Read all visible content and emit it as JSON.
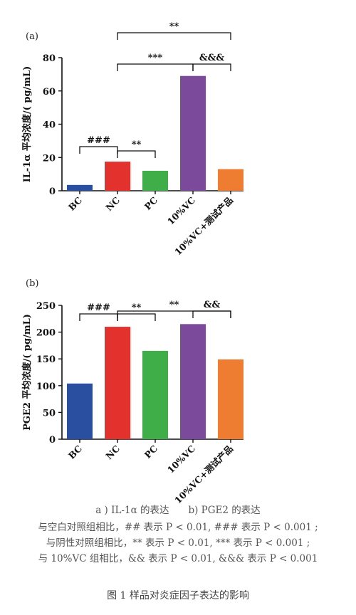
{
  "chart_data": [
    {
      "type": "bar",
      "panel_label": "(a)",
      "ylabel": "IL-1α 平均浓度/( pg/mL)",
      "categories": [
        "BC",
        "NC",
        "PC",
        "10%VC",
        "10%VC+测试产品"
      ],
      "values": [
        3.5,
        17.5,
        12,
        69,
        13
      ],
      "colors": [
        "#2b4fa0",
        "#e3312d",
        "#3fae49",
        "#7b4a9b",
        "#ee7d32"
      ],
      "ylim": [
        0,
        80
      ],
      "yticks": [
        0,
        20,
        40,
        60,
        80
      ],
      "significance": [
        {
          "from": 0,
          "to": 1,
          "label": "###"
        },
        {
          "from": 1,
          "to": 2,
          "label": "**"
        },
        {
          "from": 1,
          "to": 3,
          "label": "***"
        },
        {
          "from": 3,
          "to": 4,
          "label": "&&&"
        },
        {
          "from": 1,
          "to": 4,
          "label": "**"
        }
      ]
    },
    {
      "type": "bar",
      "panel_label": "(b)",
      "ylabel": "PGE2 平均浓度/( pg/mL)",
      "categories": [
        "BC",
        "NC",
        "PC",
        "10%VC",
        "10%VC+测试产品"
      ],
      "values": [
        104,
        210,
        165,
        215,
        149
      ],
      "colors": [
        "#2b4fa0",
        "#e3312d",
        "#3fae49",
        "#7b4a9b",
        "#ee7d32"
      ],
      "ylim": [
        0,
        250
      ],
      "yticks": [
        0,
        50,
        100,
        150,
        200,
        250
      ],
      "significance": [
        {
          "from": 0,
          "to": 1,
          "label": "###"
        },
        {
          "from": 1,
          "to": 2,
          "label": "**"
        },
        {
          "from": 3,
          "to": 4,
          "label": "&&"
        },
        {
          "from": 1,
          "to": 4,
          "label": "**"
        }
      ]
    }
  ],
  "captions": {
    "sub": "a ) IL-1α 的表达　　b) PGE2 的表达",
    "notes": [
      "与空白对照组相比，## 表示 P < 0.01, ### 表示 P < 0.001 ;",
      "与阴性对照组相比，** 表示 P < 0.01,  *** 表示 P < 0.001 ;",
      "与 10%VC 组相比，&& 表示 P < 0.01,  &&& 表示 P < 0.001"
    ],
    "figure_title": "图 1  样品对炎症因子表达的影响"
  }
}
